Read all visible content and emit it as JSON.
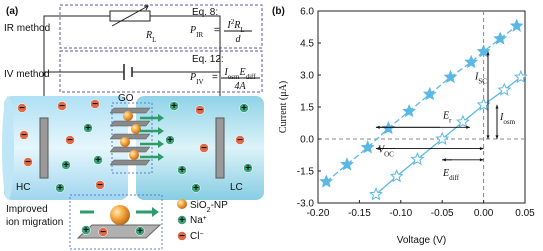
{
  "panel_a": {
    "label": "(a)",
    "ir_method": "IR method",
    "iv_method": "IV method",
    "eq8": {
      "tag": "Eq. 8:",
      "lhs": "P",
      "lhs_sub": "IR",
      "eq": "=",
      "num": "I",
      "num_sup": "2",
      "num_r": "R",
      "num_sub": "L",
      "den": "d"
    },
    "eq12": {
      "tag": "Eq. 12:",
      "lhs": "P",
      "lhs_sub": "IV",
      "eq": "=",
      "num1": "I",
      "num1_sub": "osm",
      "num2": "E",
      "num2_sub": "diff",
      "den": "4A"
    },
    "resistor": {
      "main": "R",
      "sub": "L"
    },
    "go": "GO",
    "hc": "HC",
    "lc": "LC",
    "inset": {
      "line1": "Improved",
      "line2": "ion migration"
    },
    "legend": {
      "np": "SiO",
      "np_sub": "2",
      "np_tail": "-NP",
      "na": "Na",
      "na_sup": "+",
      "cl": "Cl",
      "cl_sup": "−"
    },
    "ion_plus": "+",
    "ion_minus": "−"
  },
  "chart_data": {
    "type": "scatter",
    "label": "(b)",
    "xlabel": "Voltage (V)",
    "ylabel": "Current (μA)",
    "xlim": [
      -0.2,
      0.05
    ],
    "ylim": [
      -3,
      6
    ],
    "xticks": [
      {
        "value": -0.2,
        "label": "-0.20"
      },
      {
        "value": -0.15,
        "label": "-0.15"
      },
      {
        "value": -0.1,
        "label": "-0.10"
      },
      {
        "value": -0.05,
        "label": "-0.05"
      },
      {
        "value": 0,
        "label": "0.00"
      },
      {
        "value": 0.05,
        "label": "0.05"
      }
    ],
    "yticks": [
      {
        "value": -3,
        "label": "-3.0"
      },
      {
        "value": -1.5,
        "label": "-1.5"
      },
      {
        "value": 0,
        "label": "0.0"
      },
      {
        "value": 1.5,
        "label": "1.5"
      },
      {
        "value": 3,
        "label": "3.0"
      },
      {
        "value": 4.5,
        "label": "4.5"
      },
      {
        "value": 6,
        "label": "6.0"
      }
    ],
    "series": [
      {
        "marker": "star-filled",
        "linestyle": "dashed",
        "color": "#5bb8e6",
        "x": [
          -0.19,
          -0.165,
          -0.14,
          -0.115,
          -0.09,
          -0.065,
          -0.04,
          -0.015,
          0.0,
          0.02,
          0.04
        ],
        "values": [
          -2.0,
          -1.2,
          -0.4,
          0.5,
          1.3,
          2.1,
          2.9,
          3.6,
          4.1,
          4.7,
          5.3
        ]
      },
      {
        "marker": "star-open",
        "linestyle": "solid",
        "color": "#5bb8e6",
        "x": [
          -0.13,
          -0.105,
          -0.08,
          -0.05,
          -0.025,
          0.0,
          0.025,
          0.045
        ],
        "values": [
          -2.6,
          -1.75,
          -0.95,
          0.0,
          0.8,
          1.6,
          2.3,
          2.9
        ]
      }
    ],
    "annotations": [
      {
        "main": "I",
        "sub": "SC"
      },
      {
        "main": "I",
        "sub": "osm"
      },
      {
        "main": "E",
        "sub": "r"
      },
      {
        "main": "V",
        "sub": "OC"
      },
      {
        "main": "E",
        "sub": "diff"
      }
    ]
  }
}
